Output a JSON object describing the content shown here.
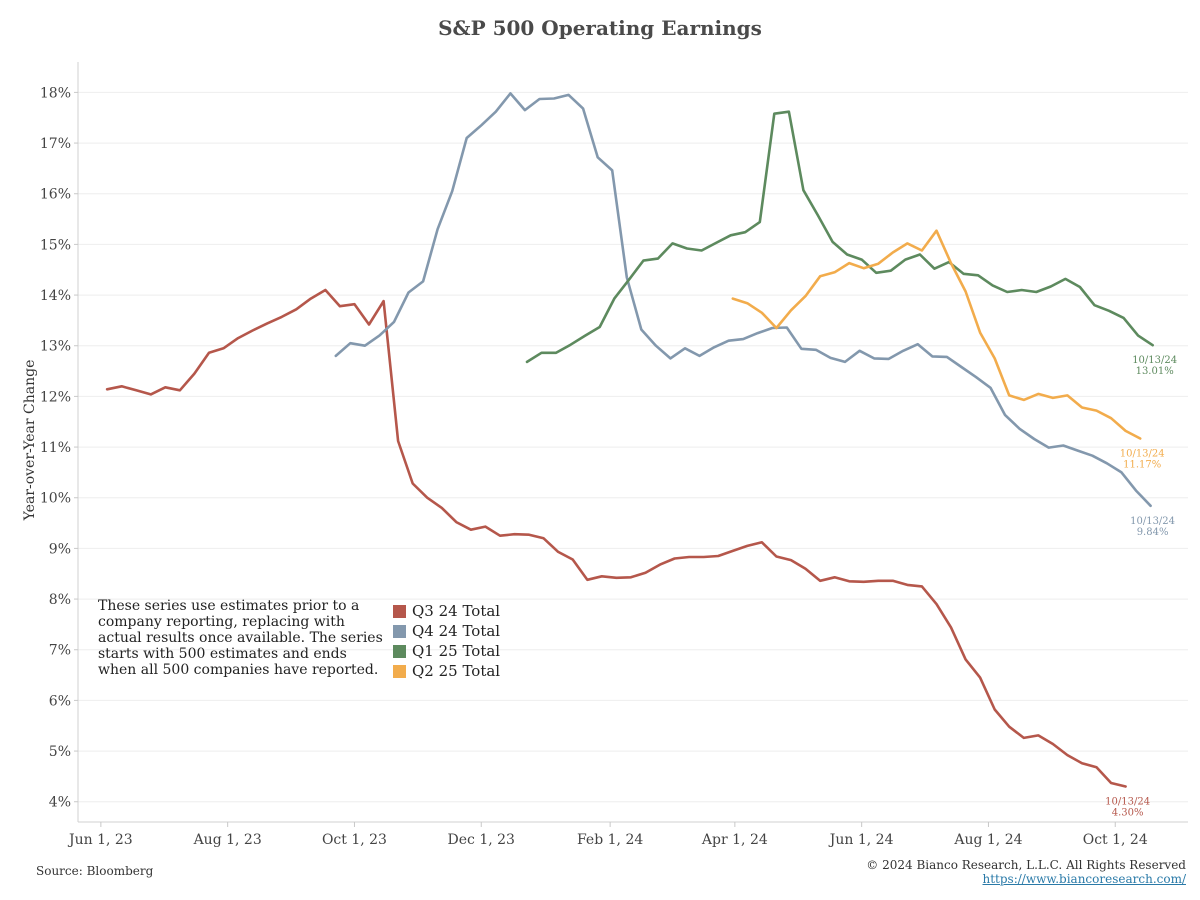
{
  "chart_data": {
    "type": "line",
    "title": "S&P 500 Operating Earnings",
    "ylabel": "Year-over-Year Change",
    "xlabel": "",
    "ylim": [
      3.6,
      18.6
    ],
    "xlim": [
      "2023-05-21",
      "2024-11-05"
    ],
    "yticks": [
      "4%",
      "5%",
      "6%",
      "7%",
      "8%",
      "9%",
      "10%",
      "11%",
      "12%",
      "13%",
      "14%",
      "15%",
      "16%",
      "17%",
      "18%"
    ],
    "xticks": [
      {
        "date": "2023-06-01",
        "label": "Jun 1, 23"
      },
      {
        "date": "2023-08-01",
        "label": "Aug 1, 23"
      },
      {
        "date": "2023-10-01",
        "label": "Oct 1, 23"
      },
      {
        "date": "2023-12-01",
        "label": "Dec 1, 23"
      },
      {
        "date": "2024-02-01",
        "label": "Feb 1, 24"
      },
      {
        "date": "2024-04-01",
        "label": "Apr 1, 24"
      },
      {
        "date": "2024-06-01",
        "label": "Jun 1, 24"
      },
      {
        "date": "2024-08-01",
        "label": "Aug 1, 24"
      },
      {
        "date": "2024-10-01",
        "label": "Oct 1, 24"
      }
    ],
    "grid": true,
    "series": [
      {
        "name": "Q3 24 Total",
        "color": "#b5574b",
        "end_label": [
          "10/13/24",
          "4.30%"
        ],
        "points": [
          [
            "2023-06-04",
            12.14
          ],
          [
            "2023-06-11",
            12.2
          ],
          [
            "2023-06-18",
            12.12
          ],
          [
            "2023-06-25",
            12.04
          ],
          [
            "2023-07-02",
            12.18
          ],
          [
            "2023-07-09",
            12.12
          ],
          [
            "2023-07-16",
            12.45
          ],
          [
            "2023-07-23",
            12.86
          ],
          [
            "2023-07-30",
            12.95
          ],
          [
            "2023-08-06",
            13.15
          ],
          [
            "2023-08-13",
            13.3
          ],
          [
            "2023-08-20",
            13.44
          ],
          [
            "2023-08-27",
            13.57
          ],
          [
            "2023-09-03",
            13.72
          ],
          [
            "2023-09-10",
            13.93
          ],
          [
            "2023-09-17",
            14.1
          ],
          [
            "2023-09-24",
            13.78
          ],
          [
            "2023-10-01",
            13.82
          ],
          [
            "2023-10-08",
            13.42
          ],
          [
            "2023-10-15",
            13.88
          ],
          [
            "2023-10-22",
            11.12
          ],
          [
            "2023-10-29",
            10.28
          ],
          [
            "2023-11-05",
            10.0
          ],
          [
            "2023-11-12",
            9.8
          ],
          [
            "2023-11-19",
            9.52
          ],
          [
            "2023-11-26",
            9.37
          ],
          [
            "2023-12-03",
            9.43
          ],
          [
            "2023-12-10",
            9.25
          ],
          [
            "2023-12-17",
            9.28
          ],
          [
            "2023-12-24",
            9.27
          ],
          [
            "2023-12-31",
            9.2
          ],
          [
            "2024-01-07",
            8.93
          ],
          [
            "2024-01-14",
            8.78
          ],
          [
            "2024-01-21",
            8.38
          ],
          [
            "2024-01-28",
            8.45
          ],
          [
            "2024-02-04",
            8.42
          ],
          [
            "2024-02-11",
            8.43
          ],
          [
            "2024-02-18",
            8.52
          ],
          [
            "2024-02-25",
            8.68
          ],
          [
            "2024-03-03",
            8.8
          ],
          [
            "2024-03-10",
            8.83
          ],
          [
            "2024-03-17",
            8.83
          ],
          [
            "2024-03-24",
            8.85
          ],
          [
            "2024-03-31",
            8.95
          ],
          [
            "2024-04-07",
            9.05
          ],
          [
            "2024-04-14",
            9.12
          ],
          [
            "2024-04-21",
            8.84
          ],
          [
            "2024-04-28",
            8.77
          ],
          [
            "2024-05-05",
            8.6
          ],
          [
            "2024-05-12",
            8.36
          ],
          [
            "2024-05-19",
            8.43
          ],
          [
            "2024-05-26",
            8.35
          ],
          [
            "2024-06-02",
            8.34
          ],
          [
            "2024-06-09",
            8.36
          ],
          [
            "2024-06-16",
            8.36
          ],
          [
            "2024-06-23",
            8.28
          ],
          [
            "2024-06-30",
            8.25
          ],
          [
            "2024-07-07",
            7.9
          ],
          [
            "2024-07-14",
            7.44
          ],
          [
            "2024-07-21",
            6.81
          ],
          [
            "2024-07-28",
            6.45
          ],
          [
            "2024-08-04",
            5.82
          ],
          [
            "2024-08-11",
            5.48
          ],
          [
            "2024-08-18",
            5.26
          ],
          [
            "2024-08-25",
            5.31
          ],
          [
            "2024-09-01",
            5.14
          ],
          [
            "2024-09-08",
            4.92
          ],
          [
            "2024-09-15",
            4.76
          ],
          [
            "2024-09-22",
            4.68
          ],
          [
            "2024-09-29",
            4.37
          ],
          [
            "2024-10-06",
            4.3
          ]
        ]
      },
      {
        "name": "Q4 24 Total",
        "color": "#8398ad",
        "end_label": [
          "10/13/24",
          "9.84%"
        ],
        "points": [
          [
            "2023-09-22",
            12.8
          ],
          [
            "2023-09-29",
            13.05
          ],
          [
            "2023-10-06",
            13.0
          ],
          [
            "2023-10-13",
            13.2
          ],
          [
            "2023-10-20",
            13.47
          ],
          [
            "2023-10-27",
            14.05
          ],
          [
            "2023-11-03",
            14.27
          ],
          [
            "2023-11-10",
            15.3
          ],
          [
            "2023-11-17",
            16.05
          ],
          [
            "2023-11-24",
            17.1
          ],
          [
            "2023-12-01",
            17.35
          ],
          [
            "2023-12-08",
            17.62
          ],
          [
            "2023-12-15",
            17.98
          ],
          [
            "2023-12-22",
            17.65
          ],
          [
            "2023-12-29",
            17.87
          ],
          [
            "2024-01-05",
            17.88
          ],
          [
            "2024-01-12",
            17.95
          ],
          [
            "2024-01-19",
            17.68
          ],
          [
            "2024-01-26",
            16.72
          ],
          [
            "2024-02-02",
            16.46
          ],
          [
            "2024-02-09",
            14.35
          ],
          [
            "2024-02-16",
            13.32
          ],
          [
            "2024-02-23",
            13.0
          ],
          [
            "2024-03-01",
            12.75
          ],
          [
            "2024-03-08",
            12.95
          ],
          [
            "2024-03-15",
            12.8
          ],
          [
            "2024-03-22",
            12.97
          ],
          [
            "2024-03-29",
            13.1
          ],
          [
            "2024-04-05",
            13.13
          ],
          [
            "2024-04-12",
            13.25
          ],
          [
            "2024-04-19",
            13.35
          ],
          [
            "2024-04-26",
            13.36
          ],
          [
            "2024-05-03",
            12.94
          ],
          [
            "2024-05-10",
            12.92
          ],
          [
            "2024-05-17",
            12.76
          ],
          [
            "2024-05-24",
            12.68
          ],
          [
            "2024-05-31",
            12.9
          ],
          [
            "2024-06-07",
            12.75
          ],
          [
            "2024-06-14",
            12.74
          ],
          [
            "2024-06-21",
            12.9
          ],
          [
            "2024-06-28",
            13.03
          ],
          [
            "2024-07-05",
            12.79
          ],
          [
            "2024-07-12",
            12.78
          ],
          [
            "2024-07-19",
            12.58
          ],
          [
            "2024-07-26",
            12.38
          ],
          [
            "2024-08-02",
            12.17
          ],
          [
            "2024-08-09",
            11.63
          ],
          [
            "2024-08-16",
            11.36
          ],
          [
            "2024-08-23",
            11.16
          ],
          [
            "2024-08-30",
            10.99
          ],
          [
            "2024-09-06",
            11.03
          ],
          [
            "2024-09-13",
            10.93
          ],
          [
            "2024-09-20",
            10.83
          ],
          [
            "2024-09-27",
            10.68
          ],
          [
            "2024-10-04",
            10.5
          ],
          [
            "2024-10-11",
            10.14
          ],
          [
            "2024-10-18",
            9.84
          ]
        ]
      },
      {
        "name": "Q1 25 Total",
        "color": "#5d8a5e",
        "end_label": [
          "10/13/24",
          "13.01%"
        ],
        "points": [
          [
            "2023-12-23",
            12.68
          ],
          [
            "2023-12-30",
            12.86
          ],
          [
            "2024-01-06",
            12.86
          ],
          [
            "2024-01-13",
            13.02
          ],
          [
            "2024-01-20",
            13.2
          ],
          [
            "2024-01-27",
            13.37
          ],
          [
            "2024-02-03",
            13.93
          ],
          [
            "2024-02-10",
            14.3
          ],
          [
            "2024-02-17",
            14.68
          ],
          [
            "2024-02-24",
            14.72
          ],
          [
            "2024-03-02",
            15.02
          ],
          [
            "2024-03-09",
            14.92
          ],
          [
            "2024-03-16",
            14.88
          ],
          [
            "2024-03-23",
            15.03
          ],
          [
            "2024-03-30",
            15.18
          ],
          [
            "2024-04-06",
            15.24
          ],
          [
            "2024-04-13",
            15.44
          ],
          [
            "2024-04-20",
            17.58
          ],
          [
            "2024-04-27",
            17.62
          ],
          [
            "2024-05-04",
            16.07
          ],
          [
            "2024-05-11",
            15.57
          ],
          [
            "2024-05-18",
            15.05
          ],
          [
            "2024-05-25",
            14.8
          ],
          [
            "2024-06-01",
            14.7
          ],
          [
            "2024-06-08",
            14.44
          ],
          [
            "2024-06-15",
            14.48
          ],
          [
            "2024-06-22",
            14.7
          ],
          [
            "2024-06-29",
            14.8
          ],
          [
            "2024-07-06",
            14.52
          ],
          [
            "2024-07-13",
            14.65
          ],
          [
            "2024-07-20",
            14.42
          ],
          [
            "2024-07-27",
            14.39
          ],
          [
            "2024-08-03",
            14.19
          ],
          [
            "2024-08-10",
            14.06
          ],
          [
            "2024-08-17",
            14.1
          ],
          [
            "2024-08-24",
            14.06
          ],
          [
            "2024-08-31",
            14.17
          ],
          [
            "2024-09-07",
            14.32
          ],
          [
            "2024-09-14",
            14.16
          ],
          [
            "2024-09-21",
            13.8
          ],
          [
            "2024-09-28",
            13.69
          ],
          [
            "2024-10-05",
            13.55
          ],
          [
            "2024-10-12",
            13.2
          ],
          [
            "2024-10-19",
            13.01
          ]
        ]
      },
      {
        "name": "Q2 25 Total",
        "color": "#f2ac4c",
        "end_label": [
          "10/13/24",
          "11.17%"
        ],
        "points": [
          [
            "2024-03-31",
            13.93
          ],
          [
            "2024-04-07",
            13.84
          ],
          [
            "2024-04-14",
            13.65
          ],
          [
            "2024-04-21",
            13.35
          ],
          [
            "2024-04-28",
            13.7
          ],
          [
            "2024-05-05",
            13.98
          ],
          [
            "2024-05-12",
            14.37
          ],
          [
            "2024-05-19",
            14.45
          ],
          [
            "2024-05-26",
            14.63
          ],
          [
            "2024-06-02",
            14.53
          ],
          [
            "2024-06-09",
            14.62
          ],
          [
            "2024-06-16",
            14.84
          ],
          [
            "2024-06-23",
            15.02
          ],
          [
            "2024-06-30",
            14.88
          ],
          [
            "2024-07-07",
            15.27
          ],
          [
            "2024-07-14",
            14.63
          ],
          [
            "2024-07-21",
            14.07
          ],
          [
            "2024-07-28",
            13.26
          ],
          [
            "2024-08-04",
            12.75
          ],
          [
            "2024-08-11",
            12.02
          ],
          [
            "2024-08-18",
            11.93
          ],
          [
            "2024-08-25",
            12.05
          ],
          [
            "2024-09-01",
            11.97
          ],
          [
            "2024-09-08",
            12.02
          ],
          [
            "2024-09-15",
            11.78
          ],
          [
            "2024-09-22",
            11.72
          ],
          [
            "2024-09-29",
            11.57
          ],
          [
            "2024-10-06",
            11.32
          ],
          [
            "2024-10-13",
            11.17
          ]
        ]
      }
    ]
  },
  "note": "These series use estimates prior to a company reporting, replacing with actual results once available. The series starts with 500 estimates and ends when all 500 companies have reported.",
  "footer": {
    "source": "Source: Bloomberg",
    "copyright": "© 2024 Bianco Research, L.L.C. All Rights Reserved",
    "url": "https://www.biancoresearch.com/"
  }
}
